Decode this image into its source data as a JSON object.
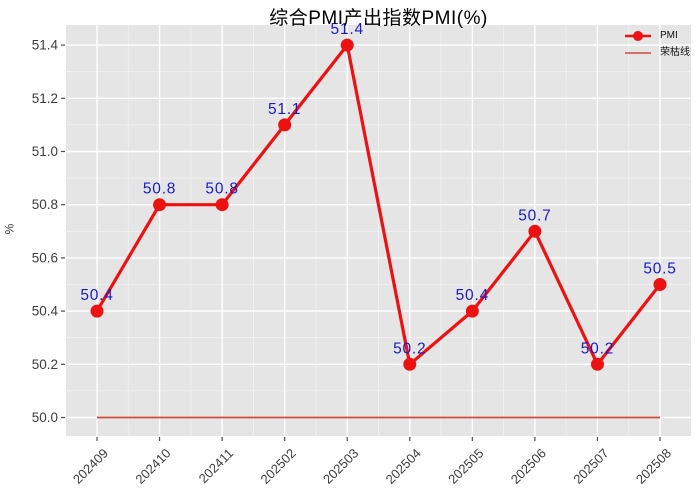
{
  "chart": {
    "title": "综合PMI产出指数PMI(%)",
    "ylabel": "%",
    "legend": [
      {
        "label": "PMI",
        "type": "line-with-marker"
      },
      {
        "label": "荣枯线",
        "type": "thin-line"
      }
    ]
  },
  "chart_data": {
    "type": "line",
    "title": "综合PMI产出指数PMI(%)",
    "xlabel": "",
    "ylabel": "%",
    "categories": [
      "202409",
      "202410",
      "202411",
      "202502",
      "202503",
      "202504",
      "202505",
      "202506",
      "202507",
      "202508"
    ],
    "series": [
      {
        "name": "PMI",
        "values": [
          50.4,
          50.8,
          50.8,
          51.1,
          51.4,
          50.2,
          50.4,
          50.7,
          50.2,
          50.5
        ]
      },
      {
        "name": "荣枯线",
        "constant_value": 50.0
      }
    ],
    "data_labels": [
      "50.4",
      "50.8",
      "50.8",
      "51.1",
      "51.4",
      "50.2",
      "50.4",
      "50.7",
      "50.2",
      "50.5"
    ],
    "yticks": [
      "50.0",
      "50.2",
      "50.4",
      "50.6",
      "50.8",
      "51.0",
      "51.2",
      "51.4"
    ],
    "ylim": [
      49.93,
      51.48
    ],
    "grid": true,
    "legend_position": "upper right"
  },
  "colors": {
    "pmi_red": "#ee1111",
    "boom_red": "#d04a3f",
    "label_blue": "#1a1acd",
    "plot_bg": "#e5e5e5",
    "grid_white": "#ffffff",
    "tick_text": "#3d3d3d",
    "tick_mark": "#4d4d4d",
    "title_text": "#000000"
  }
}
